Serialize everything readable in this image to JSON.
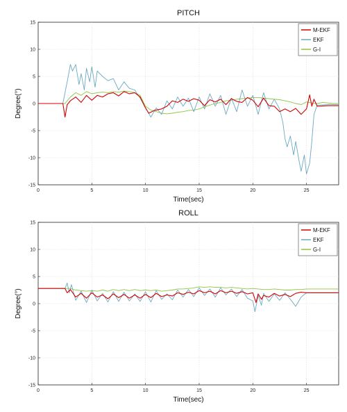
{
  "chart_data": [
    {
      "type": "line",
      "title": "PITCH",
      "xlabel": "Time(sec)",
      "ylabel": "Degree(°)",
      "xlim": [
        0,
        28
      ],
      "ylim": [
        -15,
        15
      ],
      "xticks": [
        0,
        5,
        10,
        15,
        20,
        25
      ],
      "yticks": [
        15,
        10,
        5,
        0,
        -5,
        -10,
        -15
      ],
      "grid": true,
      "legend_position": "top-right",
      "series": [
        {
          "name": "M-EKF",
          "color": "#d40000",
          "x": [
            0,
            2.3,
            2.5,
            2.7,
            3.0,
            3.5,
            4.0,
            4.5,
            5.0,
            5.5,
            6.0,
            6.5,
            7.0,
            7.5,
            8.0,
            8.5,
            9.0,
            9.5,
            10.0,
            10.3,
            10.8,
            11.5,
            12.0,
            12.5,
            13.0,
            13.5,
            14.0,
            14.5,
            15.0,
            15.5,
            16.0,
            16.5,
            17.0,
            17.5,
            18.0,
            18.5,
            19.0,
            19.5,
            20.0,
            20.5,
            21.0,
            21.5,
            22.0,
            22.5,
            23.0,
            23.5,
            24.0,
            24.5,
            25.0,
            25.3,
            25.5,
            25.7,
            26.0,
            27.0,
            28.0
          ],
          "y": [
            0,
            0,
            -2.5,
            -0.2,
            0.5,
            1.2,
            0.2,
            1.5,
            0.6,
            1.5,
            1.2,
            1.8,
            2.0,
            1.4,
            2.2,
            1.8,
            2.0,
            1.2,
            -0.8,
            -1.8,
            -1.3,
            -1.0,
            -0.5,
            0.5,
            0.2,
            0.8,
            0.4,
            0.9,
            0.6,
            -0.4,
            0.7,
            0.3,
            0.8,
            -0.2,
            0.9,
            0.4,
            0.2,
            1.1,
            0.6,
            -0.6,
            1.0,
            -0.4,
            -0.5,
            -1.5,
            -1.0,
            -1.5,
            -0.9,
            -2.0,
            -1.0,
            1.6,
            -0.5,
            0.8,
            -0.5,
            -0.4,
            -0.4
          ]
        },
        {
          "name": "EKF",
          "color": "#6aa9c2",
          "x": [
            0,
            2.3,
            2.5,
            2.8,
            3.0,
            3.2,
            3.5,
            3.8,
            4.0,
            4.3,
            4.5,
            4.8,
            5.0,
            5.3,
            5.5,
            6.0,
            6.5,
            7.0,
            7.5,
            8.0,
            8.5,
            9.0,
            9.5,
            10.0,
            10.5,
            11.0,
            11.5,
            12.0,
            12.5,
            13.0,
            13.5,
            14.0,
            14.5,
            15.0,
            15.5,
            16.0,
            16.5,
            17.0,
            17.5,
            18.0,
            18.5,
            19.0,
            19.5,
            20.0,
            20.5,
            21.0,
            21.5,
            22.0,
            22.5,
            22.8,
            23.0,
            23.2,
            23.5,
            23.8,
            24.0,
            24.3,
            24.5,
            24.8,
            25.0,
            25.3,
            25.5,
            25.7,
            26.0,
            27.0,
            28.0
          ],
          "y": [
            0,
            0,
            2.0,
            5.0,
            7.2,
            6.0,
            7.2,
            3.5,
            5.5,
            2.5,
            6.5,
            4.0,
            6.8,
            3.0,
            6.0,
            5.0,
            4.2,
            4.6,
            2.5,
            4.0,
            2.8,
            2.5,
            1.0,
            -0.8,
            -2.5,
            -0.8,
            -2.0,
            0.5,
            -1.0,
            1.2,
            -0.5,
            1.0,
            -1.5,
            1.2,
            -1.0,
            1.8,
            -0.5,
            1.5,
            -2.0,
            1.0,
            -1.5,
            2.5,
            -0.5,
            1.5,
            -2.0,
            2.0,
            -1.0,
            0.8,
            -1.0,
            -3.5,
            -6.5,
            -8.0,
            -6.0,
            -9.5,
            -7.0,
            -10.5,
            -12.5,
            -9.5,
            -13.0,
            -11.0,
            -7.0,
            -2.0,
            -0.3,
            -0.2,
            -0.2
          ]
        },
        {
          "name": "G-I",
          "color": "#8cc63e",
          "x": [
            0,
            2.5,
            3.0,
            3.5,
            4.0,
            4.5,
            5.0,
            5.5,
            6.0,
            6.5,
            7.0,
            7.5,
            8.0,
            8.5,
            9.0,
            9.5,
            10.0,
            10.5,
            11.0,
            11.5,
            12.0,
            12.5,
            13.0,
            13.5,
            14.0,
            14.5,
            15.0,
            15.5,
            16.0,
            16.5,
            17.0,
            17.5,
            18.0,
            18.5,
            19.0,
            19.5,
            20.0,
            20.5,
            21.0,
            21.5,
            22.0,
            22.5,
            23.0,
            23.5,
            24.0,
            24.5,
            25.0,
            25.5,
            26.0,
            26.5,
            27.0,
            27.5,
            28.0
          ],
          "y": [
            0,
            0,
            1.2,
            2.0,
            1.5,
            2.2,
            1.8,
            2.0,
            2.1,
            2.0,
            2.2,
            2.1,
            2.3,
            2.2,
            2.0,
            1.5,
            -0.5,
            -1.2,
            -1.5,
            -1.8,
            -1.9,
            -1.8,
            -1.6,
            -1.5,
            -1.3,
            -1.2,
            -1.0,
            -0.6,
            -0.3,
            0.0,
            0.2,
            0.5,
            0.6,
            0.8,
            0.9,
            1.0,
            1.1,
            1.1,
            1.0,
            0.9,
            0.8,
            0.7,
            0.5,
            0.3,
            0.0,
            -0.2,
            0.3,
            0.1,
            0.0,
            0.2,
            0.1,
            0.0,
            0.0
          ]
        }
      ]
    },
    {
      "type": "line",
      "title": "ROLL",
      "xlabel": "Time(sec)",
      "ylabel": "Degree(°)",
      "xlim": [
        0,
        28
      ],
      "ylim": [
        -15,
        15
      ],
      "xticks": [
        0,
        5,
        10,
        15,
        20,
        25
      ],
      "yticks": [
        15,
        10,
        5,
        0,
        -5,
        -10,
        -15
      ],
      "grid": true,
      "legend_position": "top-right",
      "series": [
        {
          "name": "M-EKF",
          "color": "#d40000",
          "x": [
            0,
            2.5,
            2.7,
            3.0,
            3.5,
            4.0,
            4.5,
            5.0,
            5.5,
            6.0,
            6.5,
            7.0,
            7.5,
            8.0,
            8.5,
            9.0,
            9.5,
            10.0,
            10.5,
            11.0,
            11.5,
            12.0,
            12.5,
            13.0,
            13.5,
            14.0,
            14.5,
            15.0,
            15.5,
            16.0,
            16.5,
            17.0,
            17.5,
            18.0,
            18.5,
            19.0,
            19.5,
            20.0,
            20.3,
            20.5,
            20.8,
            21.0,
            21.5,
            22.0,
            22.5,
            23.0,
            23.5,
            24.0,
            24.5,
            25.0,
            26.0,
            27.0,
            28.0
          ],
          "y": [
            2.8,
            2.8,
            2.0,
            2.6,
            1.2,
            1.9,
            1.0,
            2.0,
            1.2,
            1.6,
            0.9,
            1.8,
            1.1,
            1.7,
            1.0,
            1.6,
            1.0,
            1.7,
            1.1,
            1.9,
            1.3,
            1.6,
            1.4,
            2.0,
            1.7,
            2.1,
            1.8,
            2.4,
            2.0,
            2.3,
            1.8,
            2.4,
            2.0,
            2.3,
            1.9,
            2.2,
            1.8,
            2.0,
            0.2,
            1.8,
            0.8,
            1.5,
            1.2,
            1.9,
            1.4,
            1.7,
            1.3,
            1.9,
            2.1,
            2.0,
            2.0,
            2.0,
            2.0
          ]
        },
        {
          "name": "EKF",
          "color": "#6aa9c2",
          "x": [
            0,
            2.5,
            2.7,
            2.9,
            3.1,
            3.5,
            4.0,
            4.5,
            5.0,
            5.5,
            6.0,
            6.5,
            7.0,
            7.5,
            8.0,
            8.5,
            9.0,
            9.5,
            10.0,
            10.5,
            11.0,
            11.5,
            12.0,
            12.5,
            13.0,
            13.5,
            14.0,
            14.5,
            15.0,
            15.5,
            16.0,
            16.5,
            17.0,
            17.5,
            18.0,
            18.5,
            19.0,
            19.5,
            20.0,
            20.2,
            20.5,
            20.8,
            21.0,
            21.5,
            22.0,
            22.5,
            23.0,
            23.5,
            24.0,
            24.5,
            25.0,
            26.0,
            27.0,
            28.0
          ],
          "y": [
            2.8,
            2.8,
            3.8,
            2.0,
            3.5,
            0.6,
            2.3,
            0.2,
            2.5,
            0.5,
            1.9,
            0.3,
            2.2,
            0.4,
            2.1,
            0.5,
            1.8,
            0.4,
            2.2,
            0.3,
            2.4,
            0.8,
            1.8,
            0.7,
            2.5,
            1.2,
            2.6,
            1.3,
            2.9,
            1.5,
            2.7,
            1.2,
            2.9,
            1.6,
            2.7,
            1.3,
            2.6,
            1.0,
            0.5,
            -1.5,
            1.5,
            -0.3,
            1.9,
            0.4,
            1.8,
            0.6,
            2.0,
            0.8,
            -0.5,
            1.2,
            2.0,
            2.0,
            2.0,
            2.0
          ]
        },
        {
          "name": "G-I",
          "color": "#8cc63e",
          "x": [
            0,
            2.5,
            3.0,
            3.5,
            4.0,
            4.5,
            5.0,
            5.5,
            6.0,
            6.5,
            7.0,
            7.5,
            8.0,
            8.5,
            9.0,
            9.5,
            10.0,
            10.5,
            11.0,
            11.5,
            12.0,
            12.5,
            13.0,
            13.5,
            14.0,
            14.5,
            15.0,
            15.5,
            16.0,
            16.5,
            17.0,
            17.5,
            18.0,
            18.5,
            19.0,
            19.5,
            20.0,
            20.5,
            21.0,
            21.5,
            22.0,
            22.5,
            23.0,
            23.5,
            24.0,
            24.5,
            25.0,
            26.0,
            27.0,
            28.0
          ],
          "y": [
            2.8,
            2.8,
            2.8,
            2.5,
            2.4,
            2.3,
            2.4,
            2.3,
            2.5,
            2.3,
            2.6,
            2.4,
            2.6,
            2.4,
            2.6,
            2.4,
            2.5,
            2.4,
            2.5,
            2.3,
            2.4,
            2.5,
            2.7,
            2.7,
            2.8,
            2.9,
            3.1,
            3.0,
            3.1,
            3.0,
            3.0,
            2.9,
            3.0,
            2.9,
            2.8,
            2.7,
            2.8,
            2.7,
            2.6,
            2.6,
            2.7,
            2.6,
            2.5,
            2.5,
            2.6,
            2.6,
            2.7,
            2.7,
            2.7,
            2.7
          ]
        }
      ]
    }
  ]
}
